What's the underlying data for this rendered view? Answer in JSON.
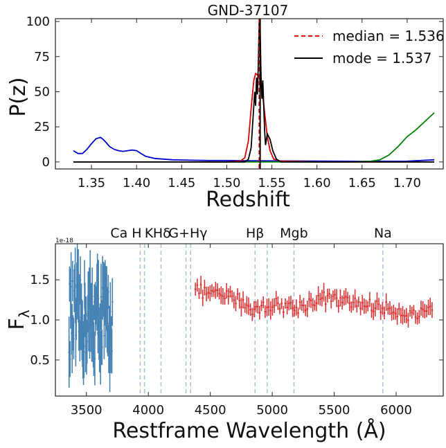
{
  "chart_data": [
    {
      "type": "line",
      "title": "GND-37107",
      "xlabel": "Redshift",
      "ylabel": "P(z)",
      "xlim": [
        1.31,
        1.74
      ],
      "ylim": [
        -5,
        102
      ],
      "xticks": [
        1.35,
        1.4,
        1.45,
        1.5,
        1.55,
        1.6,
        1.65,
        1.7
      ],
      "xtick_labels": [
        "1.35",
        "1.40",
        "1.45",
        "1.50",
        "1.55",
        "1.60",
        "1.65",
        "1.70"
      ],
      "yticks": [
        0,
        25,
        50,
        75,
        100
      ],
      "ytick_labels": [
        "0",
        "25",
        "50",
        "75",
        "100"
      ],
      "legend_position": "top-right",
      "vlines": [
        {
          "name": "median = 1.536",
          "x": 1.536,
          "color": "#ff0000",
          "style": "dashed"
        },
        {
          "name": "mode = 1.537",
          "x": 1.537,
          "color": "#000000",
          "style": "solid"
        }
      ],
      "series": [
        {
          "color": "#0000cc",
          "x": [
            1.33,
            1.335,
            1.34,
            1.345,
            1.35,
            1.355,
            1.36,
            1.363,
            1.366,
            1.37,
            1.375,
            1.38,
            1.385,
            1.39,
            1.395,
            1.4,
            1.405,
            1.41,
            1.42,
            1.43,
            1.44,
            1.46,
            1.48,
            1.5,
            1.52,
            1.56,
            1.6,
            1.65,
            1.7,
            1.73
          ],
          "y": [
            8,
            6,
            6,
            9,
            13,
            16.5,
            17.5,
            16,
            14,
            11,
            9,
            8,
            7.5,
            8,
            8.5,
            8,
            6,
            4,
            2.5,
            2,
            1.5,
            1.2,
            1,
            1,
            0.8,
            0.7,
            0.6,
            0.4,
            0.5,
            1.5
          ]
        },
        {
          "color": "#008000",
          "x": [
            1.33,
            1.5,
            1.6,
            1.64,
            1.66,
            1.67,
            1.68,
            1.69,
            1.7,
            1.71,
            1.72,
            1.73
          ],
          "y": [
            0,
            0,
            0,
            0,
            0.5,
            1.5,
            5,
            11,
            18,
            23,
            29,
            35
          ]
        },
        {
          "color": "#dd0000",
          "x": [
            1.33,
            1.5,
            1.515,
            1.52,
            1.524,
            1.527,
            1.53,
            1.532,
            1.534,
            1.536,
            1.538,
            1.54,
            1.542,
            1.545,
            1.548,
            1.552,
            1.56,
            1.6,
            1.73
          ],
          "y": [
            0,
            0,
            0.5,
            3,
            15,
            38,
            58,
            63,
            62,
            60,
            55,
            47,
            35,
            18,
            8,
            2,
            0.5,
            0,
            0
          ]
        },
        {
          "color": "#000000",
          "x": [
            1.33,
            1.52,
            1.524,
            1.527,
            1.529,
            1.531,
            1.532,
            1.533,
            1.534,
            1.535,
            1.536,
            1.537,
            1.538,
            1.539,
            1.54,
            1.541,
            1.542,
            1.543,
            1.545,
            1.548,
            1.551,
            1.555,
            1.56,
            1.73
          ],
          "y": [
            0,
            0,
            2,
            10,
            30,
            50,
            40,
            60,
            48,
            70,
            100,
            95,
            62,
            45,
            58,
            40,
            22,
            12,
            20,
            16,
            8,
            2,
            0,
            0
          ]
        }
      ]
    },
    {
      "type": "line",
      "title": "",
      "xlabel": "Restframe Wavelength (Å)",
      "ylabel": "F",
      "ylabel_subscript": "λ",
      "scale_label": "1e-18",
      "xlim": [
        3250,
        6380
      ],
      "ylim": [
        0.05,
        1.95
      ],
      "xticks": [
        3500,
        4000,
        4500,
        5000,
        5500,
        6000
      ],
      "xtick_labels": [
        "3500",
        "4000",
        "4500",
        "5000",
        "5500",
        "6000"
      ],
      "yticks": [
        0.5,
        1.0,
        1.5
      ],
      "ytick_labels": [
        "0.5",
        "1.0",
        "1.5"
      ],
      "line_color": "#b0c4de",
      "lines": [
        {
          "label": "Ca H",
          "x": [
            3934,
            3969
          ],
          "label_x": 3820
        },
        {
          "label": "K",
          "x": [
            3969
          ],
          "label_x": 4005
        },
        {
          "label": "Hδ",
          "x": [
            4102
          ],
          "label_x": 4110
        },
        {
          "label": "G+Hγ",
          "x": [
            4304,
            4341
          ],
          "label_x": 4320
        },
        {
          "label": "Hβ",
          "x": [
            4861
          ],
          "label_x": 4861
        },
        {
          "label": "",
          "x": [
            4959
          ],
          "label_x": 4959
        },
        {
          "label": "Mgb",
          "x": [
            5175
          ],
          "label_x": 5175
        },
        {
          "label": "Na",
          "x": [
            5893
          ],
          "label_x": 5893
        }
      ],
      "blue_series": {
        "color": "#4682b4",
        "x_start": 3360,
        "x_end": 3710,
        "n_points": 85,
        "y_mean": 1.0,
        "y_scatter": 0.5,
        "err": 0.35
      },
      "red_series": {
        "color": "#dd3333",
        "x_start": 4380,
        "x_end": 6290,
        "n_points": 130,
        "y_profile": [
          [
            4380,
            1.38
          ],
          [
            4500,
            1.32
          ],
          [
            4700,
            1.28
          ],
          [
            4860,
            1.12
          ],
          [
            5000,
            1.2
          ],
          [
            5200,
            1.15
          ],
          [
            5400,
            1.28
          ],
          [
            5600,
            1.22
          ],
          [
            5800,
            1.18
          ],
          [
            6000,
            1.12
          ],
          [
            6150,
            1.05
          ],
          [
            6290,
            1.1
          ]
        ],
        "y_scatter": 0.08,
        "err": 0.09
      }
    }
  ]
}
